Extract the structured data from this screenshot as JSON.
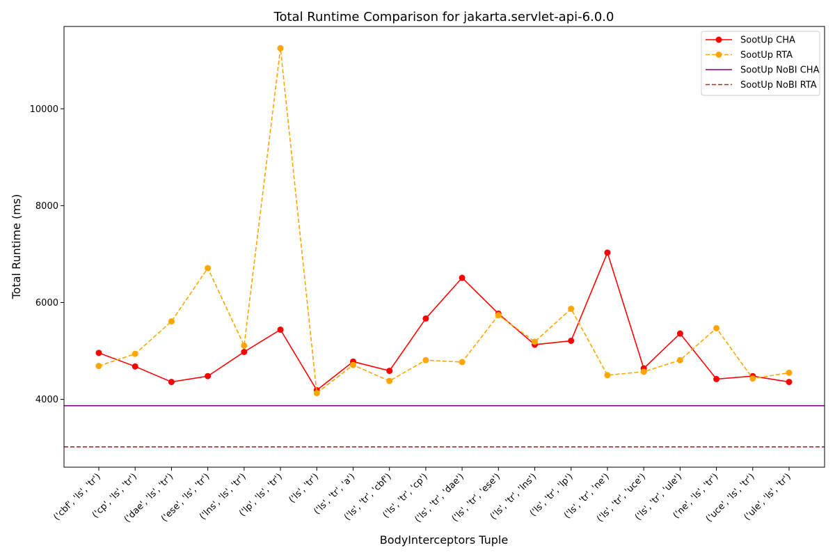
{
  "chart_data": {
    "type": "line",
    "title": "Total Runtime Comparison for jakarta.servlet-api-6.0.0",
    "xlabel": "BodyInterceptors Tuple",
    "ylabel": "Total Runtime (ms)",
    "categories": [
      "('cbf', 'ls', 'tr')",
      "('cp', 'ls', 'tr')",
      "('dae', 'ls', 'tr')",
      "('ese', 'ls', 'tr')",
      "('lns', 'ls', 'tr')",
      "('lp', 'ls', 'tr')",
      "('ls', 'tr')",
      "('ls', 'tr', 'a')",
      "('ls', 'tr', 'cbf')",
      "('ls', 'tr', 'cp')",
      "('ls', 'tr', 'dae')",
      "('ls', 'tr', 'ese')",
      "('ls', 'tr', 'lns')",
      "('ls', 'tr', 'lp')",
      "('ls', 'tr', 'ne')",
      "('ls', 'tr', 'uce')",
      "('ls', 'tr', 'ule')",
      "('ne', 'ls', 'tr')",
      "('uce', 'ls', 'tr')",
      "('ule', 'ls', 'tr')"
    ],
    "series": [
      {
        "name": "SootUp CHA",
        "color": "#ff0000",
        "style": "solid-marker",
        "values": [
          4960,
          4680,
          4360,
          4480,
          4980,
          5440,
          4190,
          4780,
          4590,
          5670,
          6510,
          5770,
          5130,
          5210,
          7030,
          4640,
          5360,
          4420,
          4480,
          4360
        ]
      },
      {
        "name": "SootUp RTA",
        "color": "#ffa500",
        "style": "dashed-marker",
        "values": [
          4690,
          4940,
          5610,
          6710,
          5110,
          11250,
          4130,
          4710,
          4380,
          4810,
          4770,
          5740,
          5190,
          5870,
          4500,
          4570,
          4810,
          5470,
          4430,
          4550
        ]
      }
    ],
    "reference_lines": [
      {
        "name": "SootUp NoBI CHA",
        "color": "#800080",
        "style": "solid",
        "value": 3870
      },
      {
        "name": "SootUp NoBI RTA",
        "color": "#a52a2a",
        "style": "dashed",
        "value": 3020
      }
    ],
    "yticks": [
      4000,
      6000,
      8000,
      10000
    ],
    "ylim": [
      2600,
      11700
    ],
    "grid": false,
    "legend_position": "top-right"
  }
}
